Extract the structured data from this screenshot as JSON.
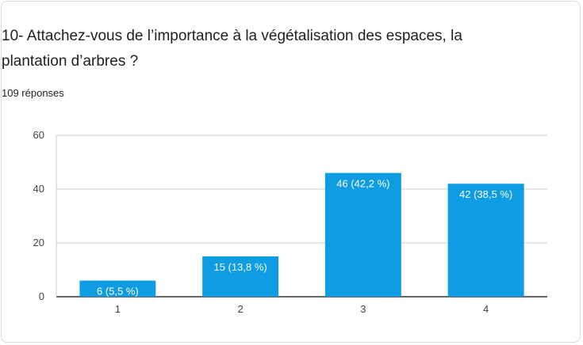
{
  "card": {
    "question": "10- Attachez-vous de l’importance à la végétalisation des espaces, la plantation d’arbres ?",
    "response_count": "109 réponses"
  },
  "chart_data": {
    "type": "bar",
    "categories": [
      "1",
      "2",
      "3",
      "4"
    ],
    "values": [
      6,
      15,
      46,
      42
    ],
    "data_labels": [
      "6 (5,5 %)",
      "15 (13,8 %)",
      "46 (42,2 %)",
      "42 (38,5 %)"
    ],
    "yticks": [
      "0",
      "20",
      "40",
      "60"
    ],
    "ylim": [
      0,
      60
    ],
    "grid": true,
    "bar_color": "#0e9ce3",
    "title": "",
    "xlabel": "",
    "ylabel": ""
  }
}
